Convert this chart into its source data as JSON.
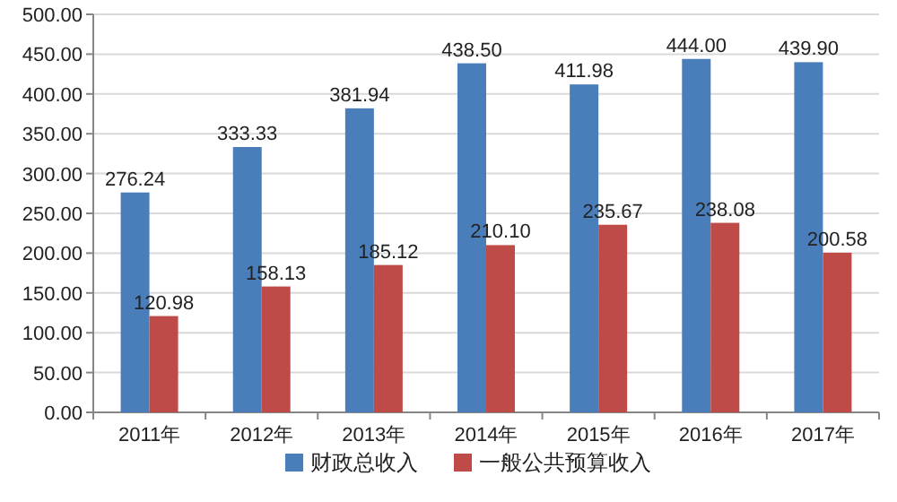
{
  "chart_data": {
    "type": "bar",
    "categories": [
      "2011年",
      "2012年",
      "2013年",
      "2014年",
      "2015年",
      "2016年",
      "2017年"
    ],
    "series": [
      {
        "name": "财政总收入",
        "color": "#4a7ebb",
        "values": [
          276.24,
          333.33,
          381.94,
          438.5,
          411.98,
          444.0,
          439.9
        ],
        "value_labels": [
          "276.24",
          "333.33",
          "381.94",
          "438.50",
          "411.98",
          "444.00",
          "439.90"
        ]
      },
      {
        "name": "一般公共预算收入",
        "color": "#be4b48",
        "values": [
          120.98,
          158.13,
          185.12,
          210.1,
          235.67,
          238.08,
          200.58
        ],
        "value_labels": [
          "120.98",
          "158.13",
          "185.12",
          "210.10",
          "235.67",
          "238.08",
          "200.58"
        ]
      }
    ],
    "ylim": [
      0,
      500
    ],
    "yticks": [
      {
        "value": 0,
        "label": "0.00"
      },
      {
        "value": 50,
        "label": "50.00"
      },
      {
        "value": 100,
        "label": "100.00"
      },
      {
        "value": 150,
        "label": "150.00"
      },
      {
        "value": 200,
        "label": "200.00"
      },
      {
        "value": 250,
        "label": "250.00"
      },
      {
        "value": 300,
        "label": "300.00"
      },
      {
        "value": 350,
        "label": "350.00"
      },
      {
        "value": 400,
        "label": "400.00"
      },
      {
        "value": 450,
        "label": "450.00"
      },
      {
        "value": 500,
        "label": "500.00"
      }
    ],
    "grid": "y",
    "legend": "bottom"
  }
}
